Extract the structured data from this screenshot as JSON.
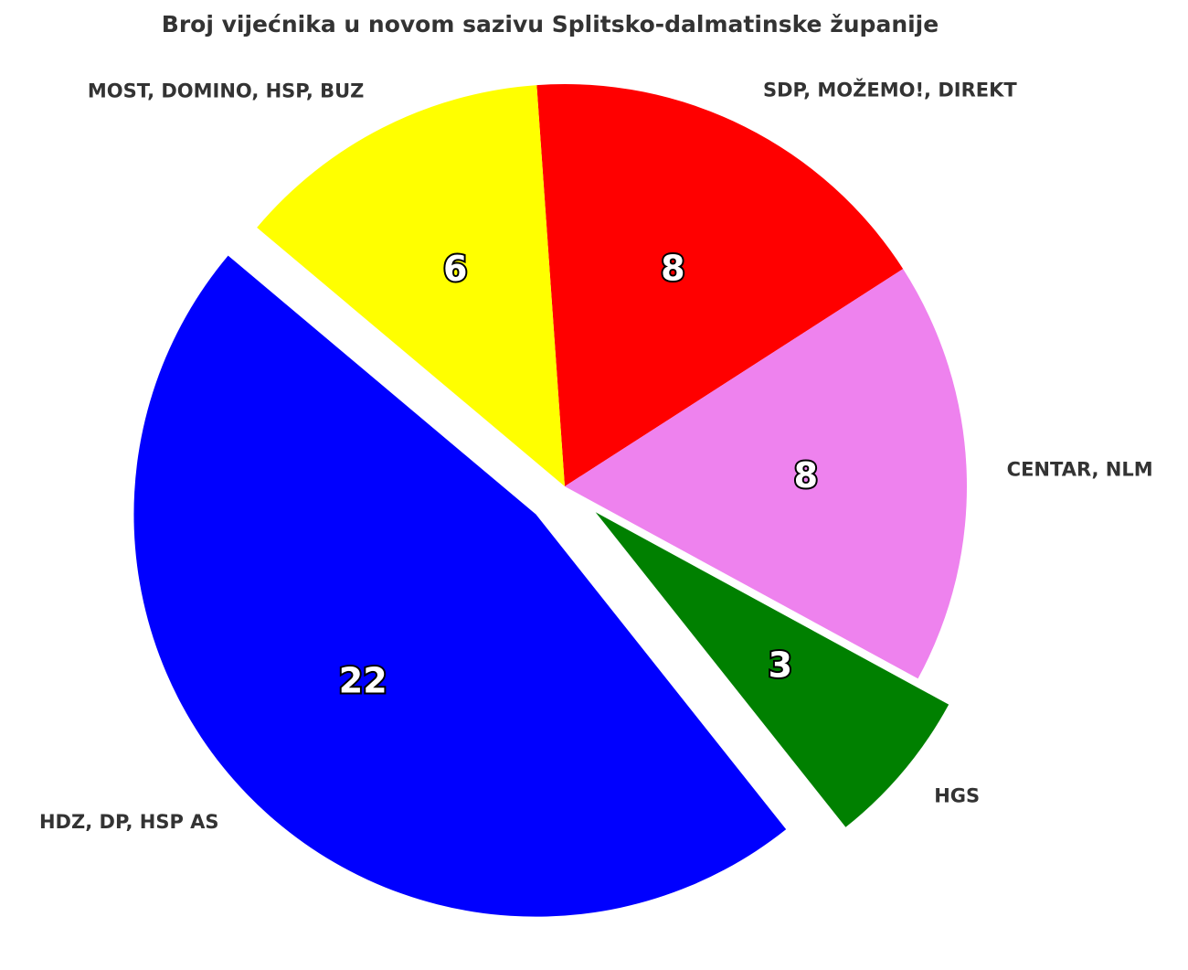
{
  "chart_data": {
    "type": "pie",
    "title": "Broj vijećnika u novom sazivu Splitsko-dalmatinske županije",
    "categories": [
      "SDP, MOŽEMO!, DIREKT",
      "CENTAR, NLM",
      "HGS",
      "HDZ, DP, HSP AS",
      "MOST, DOMINO, HSP, BUZ"
    ],
    "values": [
      8,
      8,
      3,
      22,
      6
    ],
    "colors": [
      "#ff0000",
      "#ee82ee",
      "#008000",
      "#0000ff",
      "#ffff00"
    ],
    "explode": [
      0,
      0,
      0.1,
      0.1,
      0
    ]
  }
}
